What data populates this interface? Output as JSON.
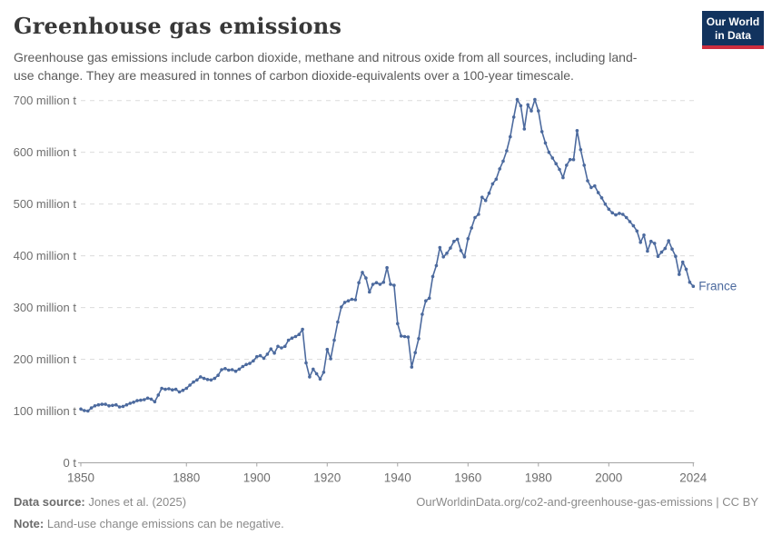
{
  "header": {
    "title": "Greenhouse gas emissions",
    "subtitle": "Greenhouse gas emissions include carbon dioxide, methane and nitrous oxide from all sources, including land-use change. They are measured in tonnes of carbon dioxide-equivalents over a 100-year timescale.",
    "logo": {
      "line1": "Our World",
      "line2": "in Data",
      "bg_color": "#12335e",
      "accent_color": "#cd2d3e"
    }
  },
  "chart_data": {
    "type": "line",
    "title": "Greenhouse gas emissions",
    "unit": "million tonnes of CO2-equivalents",
    "grid": "dashed-horizontal",
    "legend": "inline-end-label",
    "line_color": "#4c6a9e",
    "axis_text_color": "#6e6e6e",
    "xlabel": "",
    "ylabel": "",
    "ylim": [
      0,
      700
    ],
    "y_ticks": [
      {
        "value": 0,
        "label": "0 t"
      },
      {
        "value": 100,
        "label": "100 million t"
      },
      {
        "value": 200,
        "label": "200 million t"
      },
      {
        "value": 300,
        "label": "300 million t"
      },
      {
        "value": 400,
        "label": "400 million t"
      },
      {
        "value": 500,
        "label": "500 million t"
      },
      {
        "value": 600,
        "label": "600 million t"
      },
      {
        "value": 700,
        "label": "700 million t"
      }
    ],
    "x_ticks": [
      1850,
      1880,
      1900,
      1920,
      1940,
      1960,
      1980,
      2000,
      2024
    ],
    "series": [
      {
        "name": "France",
        "end_label": "France",
        "start_year": 1850,
        "end_year": 2024,
        "values": [
          104,
          101,
          100,
          106,
          110,
          112,
          113,
          113,
          110,
          111,
          112,
          108,
          109,
          112,
          115,
          117,
          120,
          121,
          122,
          125,
          123,
          118,
          131,
          144,
          142,
          143,
          141,
          142,
          137,
          140,
          144,
          150,
          156,
          160,
          166,
          163,
          161,
          160,
          163,
          169,
          180,
          182,
          179,
          180,
          177,
          181,
          186,
          190,
          192,
          197,
          205,
          207,
          202,
          210,
          220,
          212,
          225,
          222,
          225,
          237,
          241,
          244,
          248,
          258,
          193,
          166,
          181,
          172,
          162,
          175,
          219,
          201,
          237,
          272,
          301,
          310,
          313,
          316,
          315,
          348,
          368,
          357,
          330,
          345,
          348,
          345,
          349,
          377,
          345,
          343,
          269,
          245,
          244,
          243,
          185,
          213,
          240,
          287,
          313,
          318,
          360,
          381,
          416,
          398,
          405,
          415,
          428,
          432,
          410,
          398,
          433,
          454,
          474,
          480,
          513,
          507,
          521,
          539,
          548,
          568,
          583,
          603,
          630,
          668,
          702,
          690,
          645,
          692,
          680,
          702,
          680,
          640,
          618,
          600,
          589,
          578,
          567,
          551,
          575,
          586,
          586,
          642,
          605,
          575,
          545,
          532,
          535,
          522,
          512,
          500,
          490,
          483,
          479,
          482,
          480,
          474,
          466,
          458,
          448,
          426,
          440,
          409,
          428,
          424,
          399,
          407,
          414,
          429,
          413,
          399,
          364,
          388,
          374,
          349,
          341
        ]
      }
    ]
  },
  "footer": {
    "data_source_label": "Data source:",
    "data_source_value": "Jones et al. (2025)",
    "url_text": "OurWorldinData.org/co2-and-greenhouse-gas-emissions | CC BY",
    "note_label": "Note:",
    "note_value": "Land-use change emissions can be negative."
  }
}
